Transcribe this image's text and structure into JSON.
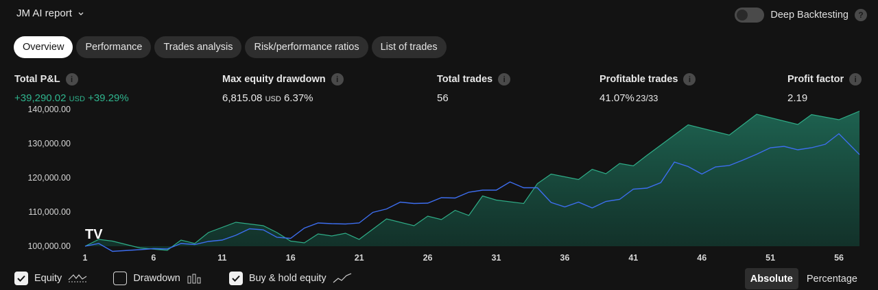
{
  "header": {
    "title": "JM AI report",
    "deep_backtesting_label": "Deep Backtesting",
    "deep_backtesting_on": false
  },
  "tabs": [
    {
      "label": "Overview",
      "active": true
    },
    {
      "label": "Performance",
      "active": false
    },
    {
      "label": "Trades analysis",
      "active": false
    },
    {
      "label": "Risk/performance ratios",
      "active": false
    },
    {
      "label": "List of trades",
      "active": false
    }
  ],
  "metrics": {
    "total_pnl": {
      "label": "Total P&L",
      "value": "+39,290.02",
      "unit": "USD",
      "pct": "+39.29%"
    },
    "max_dd": {
      "label": "Max equity drawdown",
      "value": "6,815.08",
      "unit": "USD",
      "pct": "6.37%"
    },
    "total_trades": {
      "label": "Total trades",
      "value": "56"
    },
    "profitable": {
      "label": "Profitable trades",
      "value": "41.07%",
      "ratio": "23/33"
    },
    "profit_factor": {
      "label": "Profit factor",
      "value": "2.19"
    }
  },
  "chart_data": {
    "type": "area",
    "y_tick_labels": [
      "140,000.00",
      "130,000.00",
      "120,000.00",
      "110,000.00",
      "100,000.00"
    ],
    "y_ticks": [
      140000,
      130000,
      120000,
      110000,
      100000
    ],
    "ylim": [
      98000,
      141000
    ],
    "x_tick_labels": [
      "1",
      "6",
      "11",
      "16",
      "21",
      "26",
      "31",
      "36",
      "41",
      "46",
      "51",
      "56"
    ],
    "x_ticks": [
      1,
      6,
      11,
      16,
      21,
      26,
      31,
      36,
      41,
      46,
      51,
      56
    ],
    "xlim": [
      1,
      57.5
    ],
    "series": [
      {
        "name": "Equity",
        "color": "#2fae88",
        "x": [
          1,
          2,
          3,
          5,
          7,
          8,
          9,
          10,
          12,
          14,
          15,
          16,
          17,
          18,
          19,
          20,
          21,
          23,
          25,
          26,
          27,
          28,
          29,
          30,
          31,
          33,
          34,
          35,
          37,
          38,
          39,
          40,
          41,
          42,
          45,
          48,
          50,
          53,
          54,
          56,
          57.5
        ],
        "values": [
          100000,
          102000,
          101500,
          99500,
          98800,
          101800,
          100800,
          104000,
          107000,
          106000,
          104000,
          101500,
          101000,
          103600,
          103000,
          103800,
          102000,
          108000,
          106000,
          108800,
          107800,
          110500,
          109000,
          114700,
          113500,
          112500,
          118300,
          121100,
          119500,
          122500,
          121200,
          124200,
          123500,
          126600,
          135500,
          132500,
          138600,
          135600,
          138500,
          137000,
          139500
        ]
      },
      {
        "name": "Buy & hold equity",
        "color": "#3d6ef0",
        "x": [
          1,
          2,
          3,
          5,
          6,
          7,
          8,
          9,
          10,
          11,
          12,
          13,
          14,
          15,
          16,
          17,
          18,
          19,
          20,
          21,
          22,
          23,
          24,
          25,
          26,
          27,
          28,
          29,
          30,
          31,
          32,
          33,
          34,
          35,
          36,
          37,
          38,
          39,
          40,
          41,
          42,
          43,
          44,
          45,
          46,
          47,
          48,
          49,
          50,
          51,
          52,
          53,
          54,
          55,
          56,
          57.5
        ],
        "values": [
          100000,
          100800,
          98500,
          99000,
          99300,
          99200,
          100800,
          100500,
          101400,
          101800,
          103200,
          105100,
          104800,
          102600,
          102300,
          105300,
          106800,
          106600,
          106500,
          106800,
          109900,
          110900,
          112900,
          112500,
          112600,
          114200,
          114100,
          115800,
          116400,
          116400,
          118800,
          117100,
          117100,
          112800,
          111500,
          112900,
          111200,
          113100,
          113700,
          116700,
          117000,
          118600,
          124600,
          123300,
          121100,
          123200,
          123600,
          125200,
          126900,
          128800,
          129200,
          128200,
          128800,
          129800,
          132900,
          126800
        ]
      }
    ],
    "legend": [
      {
        "label": "Equity",
        "checked": true
      },
      {
        "label": "Drawdown",
        "checked": false
      },
      {
        "label": "Buy & hold equity",
        "checked": true
      }
    ],
    "modes": [
      {
        "label": "Absolute",
        "active": true
      },
      {
        "label": "Percentage",
        "active": false
      }
    ],
    "logo_text": "TV"
  }
}
